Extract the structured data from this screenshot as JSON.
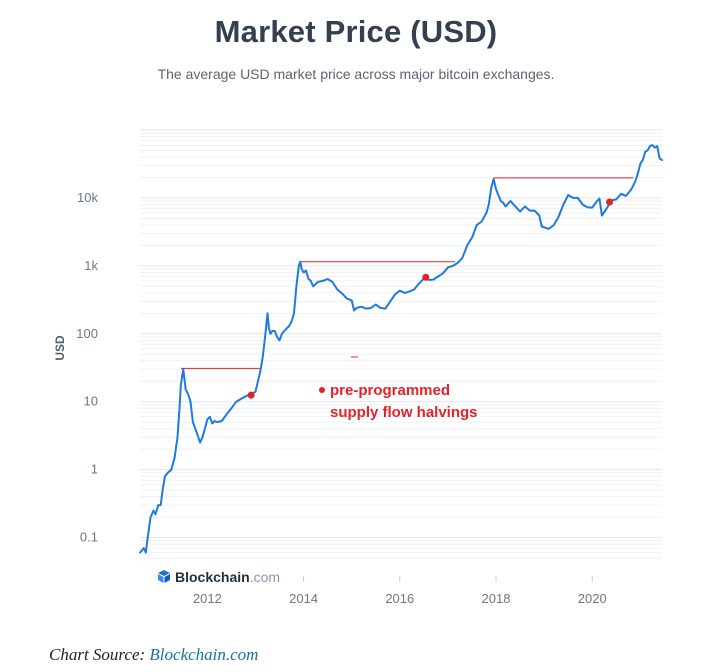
{
  "chart_data": {
    "type": "line",
    "title": "Market Price (USD)",
    "subtitle": "The average USD market price across major bitcoin exchanges.",
    "xlabel": "",
    "ylabel": "USD",
    "y_scale": "log",
    "ylim": [
      0.05,
      100000
    ],
    "xlim": [
      2010.6,
      2021.45
    ],
    "x_ticks": [
      2012,
      2014,
      2016,
      2018,
      2020
    ],
    "y_ticks": [
      0.1,
      1,
      10,
      100,
      1000,
      10000
    ],
    "y_tick_labels": [
      "0.1",
      "1",
      "10",
      "100",
      "1k",
      "10k"
    ],
    "x_tick_labels": [
      "2012",
      "2014",
      "2016",
      "2018",
      "2020"
    ],
    "grid": true,
    "legend": "none",
    "series": [
      {
        "color": "#1f7ae0",
        "x": [
          2010.6,
          2010.68,
          2010.72,
          2010.76,
          2010.82,
          2010.88,
          2010.92,
          2010.98,
          2011.03,
          2011.07,
          2011.12,
          2011.18,
          2011.25,
          2011.32,
          2011.38,
          2011.42,
          2011.45,
          2011.5,
          2011.55,
          2011.6,
          2011.65,
          2011.7,
          2011.75,
          2011.8,
          2011.85,
          2011.9,
          2011.95,
          2012.0,
          2012.05,
          2012.1,
          2012.15,
          2012.2,
          2012.3,
          2012.4,
          2012.5,
          2012.6,
          2012.7,
          2012.8,
          2012.9,
          2013.0,
          2013.05,
          2013.1,
          2013.15,
          2013.2,
          2013.25,
          2013.28,
          2013.31,
          2013.35,
          2013.4,
          2013.45,
          2013.5,
          2013.55,
          2013.6,
          2013.65,
          2013.7,
          2013.75,
          2013.8,
          2013.85,
          2013.9,
          2013.93,
          2013.96,
          2014.0,
          2014.05,
          2014.1,
          2014.15,
          2014.2,
          2014.3,
          2014.4,
          2014.5,
          2014.6,
          2014.7,
          2014.8,
          2014.9,
          2015.0,
          2015.05,
          2015.1,
          2015.2,
          2015.3,
          2015.4,
          2015.5,
          2015.6,
          2015.7,
          2015.8,
          2015.9,
          2016.0,
          2016.1,
          2016.2,
          2016.3,
          2016.4,
          2016.5,
          2016.55,
          2016.6,
          2016.7,
          2016.8,
          2016.9,
          2017.0,
          2017.1,
          2017.2,
          2017.3,
          2017.4,
          2017.5,
          2017.6,
          2017.7,
          2017.8,
          2017.85,
          2017.9,
          2017.95,
          2018.0,
          2018.05,
          2018.1,
          2018.15,
          2018.2,
          2018.3,
          2018.4,
          2018.5,
          2018.6,
          2018.7,
          2018.8,
          2018.9,
          2018.95,
          2019.0,
          2019.1,
          2019.2,
          2019.3,
          2019.4,
          2019.5,
          2019.6,
          2019.7,
          2019.8,
          2019.9,
          2020.0,
          2020.1,
          2020.15,
          2020.2,
          2020.3,
          2020.4,
          2020.5,
          2020.6,
          2020.7,
          2020.8,
          2020.85,
          2020.9,
          2020.95,
          2021.0,
          2021.05,
          2021.1,
          2021.15,
          2021.2,
          2021.25,
          2021.3,
          2021.35,
          2021.4,
          2021.45
        ],
        "y": [
          0.06,
          0.07,
          0.06,
          0.1,
          0.2,
          0.25,
          0.22,
          0.3,
          0.3,
          0.5,
          0.8,
          0.9,
          1.0,
          1.5,
          3.0,
          8.0,
          18.0,
          30.0,
          15.0,
          13.0,
          10.0,
          5.0,
          4.0,
          3.2,
          2.5,
          3.0,
          4.0,
          5.5,
          6.0,
          4.8,
          5.2,
          5.0,
          5.2,
          6.5,
          8.0,
          10.0,
          11.0,
          12.0,
          13.0,
          14.0,
          20.0,
          28.0,
          45.0,
          90.0,
          200.0,
          120.0,
          100.0,
          110.0,
          110.0,
          90.0,
          80.0,
          100.0,
          110.0,
          120.0,
          130.0,
          150.0,
          200.0,
          500.0,
          1000.0,
          1150.0,
          900.0,
          800.0,
          850.0,
          650.0,
          600.0,
          500.0,
          580.0,
          600.0,
          640.0,
          580.0,
          450.0,
          390.0,
          330.0,
          310.0,
          220.0,
          240.0,
          250.0,
          235.0,
          240.0,
          270.0,
          240.0,
          235.0,
          300.0,
          380.0,
          430.0,
          400.0,
          420.0,
          450.0,
          550.0,
          650.0,
          700.0,
          620.0,
          630.0,
          700.0,
          780.0,
          950.0,
          1000.0,
          1100.0,
          1300.0,
          2000.0,
          2600.0,
          4000.0,
          4500.0,
          6000.0,
          8000.0,
          14000.0,
          19000.0,
          13500.0,
          11000.0,
          9000.0,
          8500.0,
          7500.0,
          9000.0,
          7500.0,
          6300.0,
          7500.0,
          6500.0,
          6500.0,
          5500.0,
          3800.0,
          3700.0,
          3500.0,
          4000.0,
          5300.0,
          8000.0,
          11000.0,
          10000.0,
          10000.0,
          8000.0,
          7300.0,
          7200.0,
          9000.0,
          9800.0,
          5500.0,
          7000.0,
          9200.0,
          9500.0,
          11500.0,
          10700.0,
          13000.0,
          15000.0,
          18000.0,
          23000.0,
          32000.0,
          36000.0,
          48000.0,
          50000.0,
          58000.0,
          60000.0,
          55000.0,
          58000.0,
          38000.0,
          36000.0
        ]
      }
    ],
    "halving_markers": [
      {
        "x": 2012.91,
        "y": 12.5,
        "peak_line_x1": 2011.45,
        "peak_line_x2": 2013.1,
        "peak_line_y": 31
      },
      {
        "x": 2016.54,
        "y": 680,
        "peak_line_x1": 2013.93,
        "peak_line_x2": 2017.15,
        "peak_line_y": 1150
      },
      {
        "x": 2020.36,
        "y": 8700,
        "peak_line_x1": 2017.95,
        "peak_line_x2": 2020.85,
        "peak_line_y": 19700
      }
    ],
    "annotation": {
      "line1": "pre-programmed",
      "line2": "supply flow halvings",
      "color": "#e1232a"
    },
    "watermark": {
      "name": "Blockchain",
      "suffix": ".com",
      "icon": "blockchain-logo-icon"
    }
  },
  "source": {
    "label": "Chart Source:",
    "link_text": "Blockchain.com"
  }
}
